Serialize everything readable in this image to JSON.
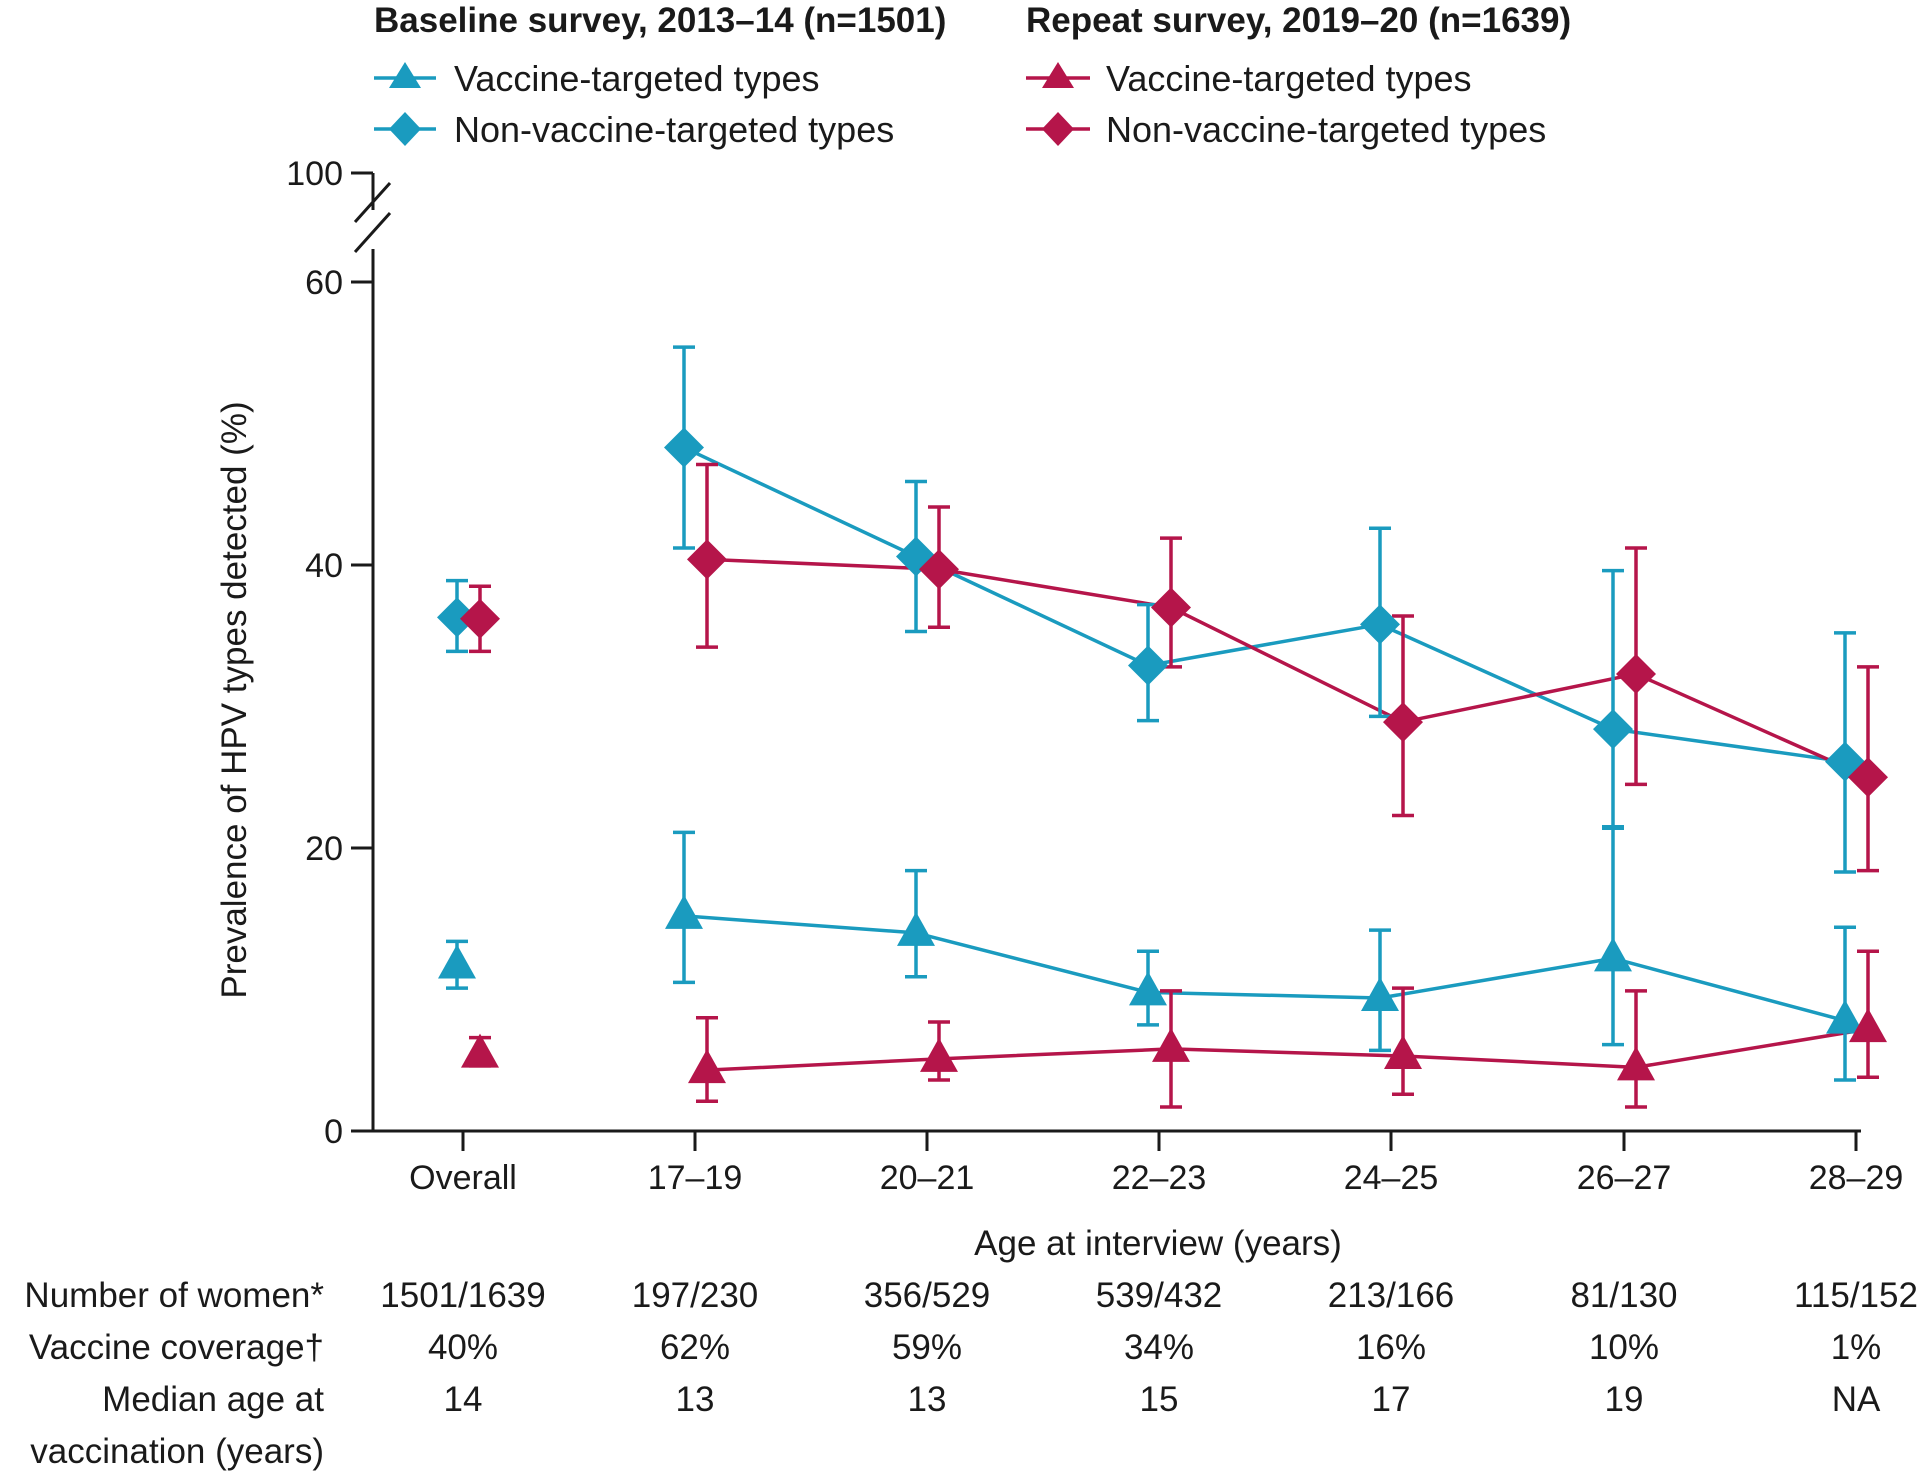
{
  "chart_data": {
    "type": "line",
    "xlabel": "Age at interview (years)",
    "ylabel": "Prevalence of HPV types detected (%)",
    "ylim": [
      0,
      60
    ],
    "y_ticks": [
      0,
      20,
      40,
      60
    ],
    "y_break_label": "100",
    "categories": [
      "Overall",
      "17–19",
      "20–21",
      "22–23",
      "24–25",
      "26–27",
      "28–29"
    ],
    "legend": {
      "baseline_title": "Baseline survey, 2013–14 (n=1501)",
      "repeat_title": "Repeat survey, 2019–20 (n=1639)",
      "baseline_vaccine_label": "Vaccine-targeted types",
      "baseline_nonvaccine_label": "Non-vaccine-targeted types",
      "repeat_vaccine_label": "Vaccine-targeted types",
      "repeat_nonvaccine_label": "Non-vaccine-targeted types"
    },
    "series": [
      {
        "name": "Baseline survey, 2013–14 – Non-vaccine-targeted types",
        "survey": "baseline",
        "marker": "diamond",
        "color": "#1a9bbf",
        "values": [
          36.3,
          48.3,
          40.6,
          32.9,
          35.8,
          28.4,
          26.1
        ],
        "lower": [
          33.9,
          41.2,
          35.3,
          29.0,
          29.3,
          21.4,
          18.3
        ],
        "upper": [
          38.9,
          55.4,
          45.9,
          37.2,
          42.6,
          39.6,
          35.2
        ]
      },
      {
        "name": "Repeat survey, 2019–20 – Non-vaccine-targeted types",
        "survey": "repeat",
        "marker": "diamond",
        "color": "#b5154a",
        "values": [
          36.2,
          40.4,
          39.7,
          37.0,
          28.9,
          32.3,
          25.0
        ],
        "lower": [
          33.9,
          34.2,
          35.6,
          32.8,
          22.3,
          24.5,
          18.4
        ],
        "upper": [
          38.5,
          47.1,
          44.1,
          41.9,
          36.4,
          41.2,
          32.8
        ]
      },
      {
        "name": "Baseline survey, 2013–14 – Vaccine-targeted types",
        "survey": "baseline",
        "marker": "triangle",
        "color": "#1a9bbf",
        "values": [
          11.7,
          15.2,
          14.0,
          9.8,
          9.4,
          12.2,
          7.8
        ],
        "lower": [
          10.1,
          10.5,
          10.9,
          7.5,
          5.7,
          6.1,
          3.6
        ],
        "upper": [
          13.4,
          21.1,
          18.4,
          12.7,
          14.2,
          21.5,
          14.4
        ]
      },
      {
        "name": "Repeat survey, 2019–20 – Vaccine-targeted types",
        "survey": "repeat",
        "marker": "triangle",
        "color": "#b5154a",
        "values": [
          5.4,
          4.3,
          5.1,
          5.8,
          5.3,
          4.5,
          7.2
        ],
        "lower": [
          4.6,
          2.1,
          3.6,
          1.7,
          2.6,
          1.7,
          3.8
        ],
        "upper": [
          6.6,
          8.0,
          7.7,
          9.9,
          10.1,
          9.9,
          12.7
        ]
      }
    ],
    "table": {
      "rows": [
        {
          "label": "Number of women*",
          "values": [
            "1501/1639",
            "197/230",
            "356/529",
            "539/432",
            "213/166",
            "81/130",
            "115/152"
          ]
        },
        {
          "label": "Vaccine coverage†",
          "values": [
            "40%",
            "62%",
            "59%",
            "34%",
            "16%",
            "10%",
            "1%"
          ]
        },
        {
          "label_lines": [
            "Median age at",
            "vaccination (years)"
          ],
          "values": [
            "14",
            "13",
            "13",
            "15",
            "17",
            "19",
            "NA"
          ]
        }
      ]
    }
  }
}
